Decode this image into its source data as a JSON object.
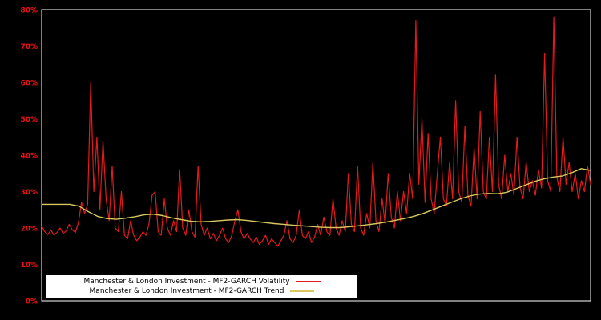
{
  "chart_data": {
    "type": "line",
    "title": "",
    "xlabel": "",
    "ylabel": "",
    "ylim": [
      0,
      80
    ],
    "yticks": [
      "0%",
      "10%",
      "20%",
      "30%",
      "40%",
      "50%",
      "60%",
      "70%",
      "80%"
    ],
    "ytick_values": [
      0,
      10,
      20,
      30,
      40,
      50,
      60,
      70,
      80
    ],
    "grid": "off",
    "background_color": "#000000",
    "frame_color": "#ffffff",
    "tick_label_color": "#ee1111",
    "legend_position": "bottom-left",
    "legend_background": "#ffffff",
    "series": [
      {
        "name": "Manchester & London Investment - MF2-GARCH Volatility",
        "color": "#e41a1c",
        "width": 1.2,
        "values": [
          20.5,
          19,
          18.2,
          19.5,
          18,
          18.8,
          20,
          18.5,
          19.2,
          21,
          19.5,
          18.8,
          21.5,
          27,
          24,
          26.5,
          60,
          30,
          45,
          25,
          44,
          28,
          22,
          37,
          20,
          19,
          30,
          18,
          17,
          22,
          18,
          16.5,
          17.5,
          19,
          18,
          21,
          29,
          30,
          19,
          18,
          28,
          20,
          18,
          22,
          19,
          36,
          20,
          18,
          25,
          19,
          17.5,
          37,
          21,
          18,
          20,
          17,
          18.5,
          16.5,
          18,
          20,
          17,
          16,
          18,
          22,
          25,
          19,
          17,
          18.5,
          17,
          16,
          17.5,
          15.5,
          16.5,
          18,
          15.5,
          17,
          16,
          15,
          16.5,
          18,
          22,
          17,
          16,
          18,
          25,
          18,
          17,
          19,
          16,
          17.5,
          21,
          18,
          23,
          19,
          18,
          28,
          20,
          18,
          22,
          19,
          35,
          21,
          19,
          37,
          20,
          18,
          24,
          20,
          38,
          22,
          19,
          28,
          21,
          35,
          23,
          20,
          30,
          22,
          30,
          24,
          35,
          28,
          77,
          32,
          50,
          27,
          46,
          28,
          24,
          35,
          45,
          28,
          26,
          38,
          28,
          55,
          30,
          27,
          48,
          29,
          26,
          42,
          28,
          52,
          30,
          28,
          45,
          30,
          62,
          32,
          28,
          40,
          30,
          35,
          29,
          45,
          31,
          28,
          38,
          30,
          33,
          29,
          36,
          31,
          68,
          33,
          30,
          78,
          34,
          30,
          45,
          32,
          38,
          30,
          35,
          28,
          33,
          30,
          37,
          32
        ]
      },
      {
        "name": "Manchester & London Investment - MF2-GARCH Trend",
        "color": "#d8c85f",
        "width": 1.4,
        "values": [
          26.5,
          26.5,
          26.5,
          26.5,
          26,
          24.5,
          23.2,
          22.6,
          22.4,
          22.7,
          23.1,
          23.6,
          23.8,
          23.4,
          22.8,
          22.3,
          21.9,
          21.7,
          21.8,
          22,
          22.2,
          22.3,
          22.1,
          21.8,
          21.5,
          21.2,
          21,
          20.8,
          20.6,
          20.4,
          20.2,
          20.1,
          20.1,
          20.3,
          20.6,
          20.9,
          21.2,
          21.6,
          22.1,
          22.6,
          23.2,
          24,
          25,
          26,
          27,
          28,
          28.8,
          29.3,
          29.5,
          29.4,
          29.8,
          30.8,
          31.8,
          32.8,
          33.5,
          34,
          34.3,
          35.2,
          36.3,
          35.8
        ]
      }
    ]
  }
}
